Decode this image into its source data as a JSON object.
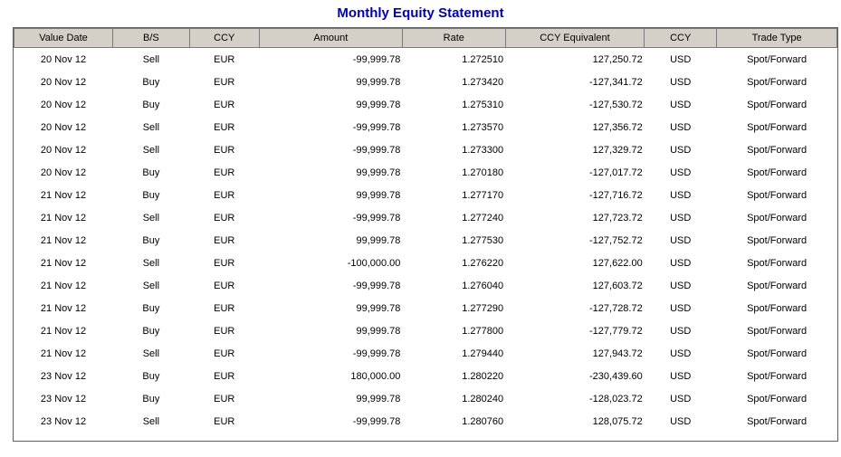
{
  "page": {
    "title": "Monthly Equity Statement",
    "title_color": "#0000b8"
  },
  "table": {
    "header_bg": "#d4d0c8",
    "columns": [
      "Value Date",
      "B/S",
      "CCY",
      "Amount",
      "Rate",
      "CCY Equivalent",
      "CCY",
      "Trade Type"
    ],
    "rows": [
      [
        "20 Nov 12",
        "Sell",
        "EUR",
        "-99,999.78",
        "1.272510",
        "127,250.72",
        "USD",
        "Spot/Forward"
      ],
      [
        "20 Nov 12",
        "Buy",
        "EUR",
        "99,999.78",
        "1.273420",
        "-127,341.72",
        "USD",
        "Spot/Forward"
      ],
      [
        "20 Nov 12",
        "Buy",
        "EUR",
        "99,999.78",
        "1.275310",
        "-127,530.72",
        "USD",
        "Spot/Forward"
      ],
      [
        "20 Nov 12",
        "Sell",
        "EUR",
        "-99,999.78",
        "1.273570",
        "127,356.72",
        "USD",
        "Spot/Forward"
      ],
      [
        "20 Nov 12",
        "Sell",
        "EUR",
        "-99,999.78",
        "1.273300",
        "127,329.72",
        "USD",
        "Spot/Forward"
      ],
      [
        "20 Nov 12",
        "Buy",
        "EUR",
        "99,999.78",
        "1.270180",
        "-127,017.72",
        "USD",
        "Spot/Forward"
      ],
      [
        "21 Nov 12",
        "Buy",
        "EUR",
        "99,999.78",
        "1.277170",
        "-127,716.72",
        "USD",
        "Spot/Forward"
      ],
      [
        "21 Nov 12",
        "Sell",
        "EUR",
        "-99,999.78",
        "1.277240",
        "127,723.72",
        "USD",
        "Spot/Forward"
      ],
      [
        "21 Nov 12",
        "Buy",
        "EUR",
        "99,999.78",
        "1.277530",
        "-127,752.72",
        "USD",
        "Spot/Forward"
      ],
      [
        "21 Nov 12",
        "Sell",
        "EUR",
        "-100,000.00",
        "1.276220",
        "127,622.00",
        "USD",
        "Spot/Forward"
      ],
      [
        "21 Nov 12",
        "Sell",
        "EUR",
        "-99,999.78",
        "1.276040",
        "127,603.72",
        "USD",
        "Spot/Forward"
      ],
      [
        "21 Nov 12",
        "Buy",
        "EUR",
        "99,999.78",
        "1.277290",
        "-127,728.72",
        "USD",
        "Spot/Forward"
      ],
      [
        "21 Nov 12",
        "Buy",
        "EUR",
        "99,999.78",
        "1.277800",
        "-127,779.72",
        "USD",
        "Spot/Forward"
      ],
      [
        "21 Nov 12",
        "Sell",
        "EUR",
        "-99,999.78",
        "1.279440",
        "127,943.72",
        "USD",
        "Spot/Forward"
      ],
      [
        "23 Nov 12",
        "Buy",
        "EUR",
        "180,000.00",
        "1.280220",
        "-230,439.60",
        "USD",
        "Spot/Forward"
      ],
      [
        "23 Nov 12",
        "Buy",
        "EUR",
        "99,999.78",
        "1.280240",
        "-128,023.72",
        "USD",
        "Spot/Forward"
      ],
      [
        "23 Nov 12",
        "Sell",
        "EUR",
        "-99,999.78",
        "1.280760",
        "128,075.72",
        "USD",
        "Spot/Forward"
      ]
    ]
  }
}
